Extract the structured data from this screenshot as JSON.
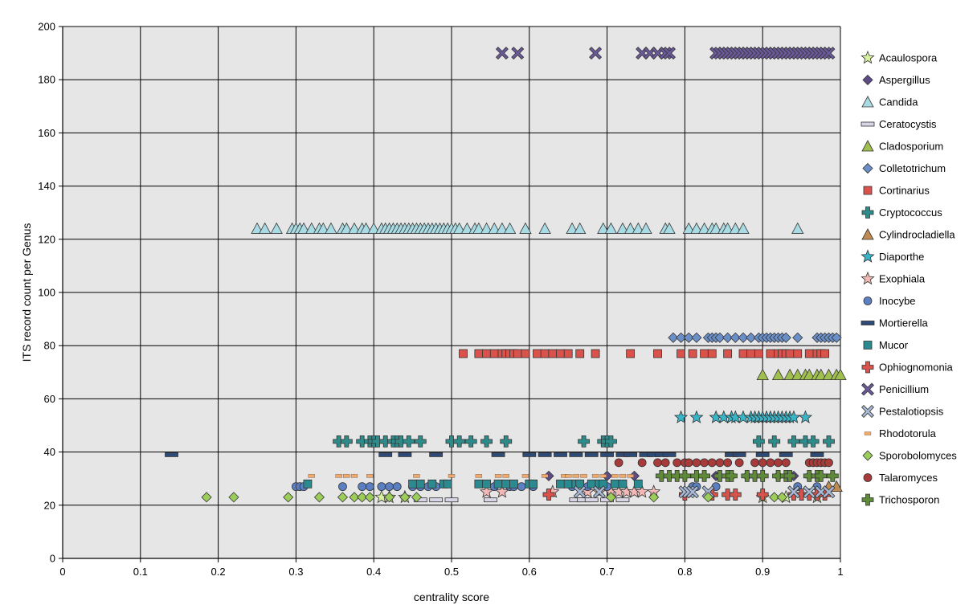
{
  "chart_data": {
    "type": "scatter",
    "title": "",
    "xlabel": "centrality score",
    "ylabel": "ITS record count per Genus",
    "xlim": [
      0,
      1
    ],
    "ylim": [
      0,
      200
    ],
    "x_ticks": [
      "0",
      "0.1",
      "0.2",
      "0.3",
      "0.4",
      "0.5",
      "0.6",
      "0.7",
      "0.8",
      "0.9",
      "1"
    ],
    "y_ticks": [
      "0",
      "20",
      "40",
      "60",
      "80",
      "100",
      "120",
      "140",
      "160",
      "180",
      "200"
    ],
    "grid": true,
    "legend_position": "right",
    "series": [
      {
        "name": "Acaulospora",
        "marker": "star",
        "color": "#d9f0a3",
        "y": 23,
        "x": [
          0.41,
          0.42,
          0.44,
          0.9,
          0.93,
          0.97
        ]
      },
      {
        "name": "Aspergillus",
        "marker": "diamond",
        "color": "#5e4a86",
        "y": 31,
        "x": [
          0.625,
          0.7,
          0.735,
          0.84,
          0.86,
          0.88,
          0.92,
          0.94,
          0.96
        ]
      },
      {
        "name": "Candida",
        "marker": "triangle",
        "color": "#a8dbe3",
        "y": 124,
        "x": [
          0.25,
          0.26,
          0.275,
          0.295,
          0.3,
          0.305,
          0.31,
          0.32,
          0.33,
          0.335,
          0.345,
          0.36,
          0.365,
          0.375,
          0.385,
          0.39,
          0.4,
          0.41,
          0.415,
          0.42,
          0.425,
          0.43,
          0.435,
          0.44,
          0.445,
          0.45,
          0.455,
          0.46,
          0.465,
          0.47,
          0.475,
          0.48,
          0.485,
          0.49,
          0.495,
          0.5,
          0.505,
          0.51,
          0.52,
          0.53,
          0.535,
          0.545,
          0.555,
          0.565,
          0.575,
          0.595,
          0.62,
          0.655,
          0.665,
          0.695,
          0.705,
          0.72,
          0.73,
          0.74,
          0.75,
          0.775,
          0.78,
          0.805,
          0.815,
          0.825,
          0.835,
          0.84,
          0.85,
          0.855,
          0.865,
          0.875,
          0.945
        ]
      },
      {
        "name": "Ceratocystis",
        "marker": "hbar",
        "color": "#d9d5e6",
        "y": 22,
        "x": [
          0.46,
          0.48,
          0.5,
          0.55,
          0.66,
          0.67,
          0.68,
          0.7,
          0.72
        ]
      },
      {
        "name": "Cladosporium",
        "marker": "triangle",
        "color": "#9fbf4f",
        "y": 69,
        "x": [
          0.9,
          0.92,
          0.935,
          0.945,
          0.955,
          0.96,
          0.97,
          0.975,
          0.985,
          0.995,
          1.0
        ]
      },
      {
        "name": "Colletotrichum",
        "marker": "diamond",
        "color": "#6a8fc8",
        "y": 83,
        "x": [
          0.785,
          0.795,
          0.805,
          0.815,
          0.83,
          0.835,
          0.84,
          0.845,
          0.855,
          0.865,
          0.875,
          0.885,
          0.895,
          0.9,
          0.905,
          0.91,
          0.915,
          0.92,
          0.925,
          0.93,
          0.945,
          0.97,
          0.975,
          0.98,
          0.985,
          0.99,
          0.995
        ]
      },
      {
        "name": "Cortinarius",
        "marker": "square",
        "color": "#d9524c",
        "y": 77,
        "x": [
          0.515,
          0.535,
          0.545,
          0.555,
          0.565,
          0.57,
          0.575,
          0.58,
          0.585,
          0.595,
          0.61,
          0.62,
          0.63,
          0.64,
          0.65,
          0.665,
          0.685,
          0.73,
          0.765,
          0.795,
          0.81,
          0.825,
          0.835,
          0.855,
          0.875,
          0.885,
          0.895,
          0.91,
          0.92,
          0.925,
          0.93,
          0.935,
          0.945,
          0.96,
          0.97,
          0.975,
          0.98
        ]
      },
      {
        "name": "Cryptococcus",
        "marker": "cross",
        "color": "#2f8a8a",
        "y": 44,
        "x": [
          0.355,
          0.365,
          0.385,
          0.395,
          0.4,
          0.405,
          0.415,
          0.425,
          0.43,
          0.435,
          0.445,
          0.46,
          0.5,
          0.51,
          0.525,
          0.545,
          0.57,
          0.67,
          0.695,
          0.7,
          0.705,
          0.895,
          0.915,
          0.94,
          0.955,
          0.965,
          0.985
        ]
      },
      {
        "name": "Cylindrocladiella",
        "marker": "triangle",
        "color": "#c08a50",
        "y": 27,
        "x": [
          0.985,
          0.995
        ]
      },
      {
        "name": "Diaporthe",
        "marker": "star",
        "color": "#3ab5c8",
        "y": 53,
        "x": [
          0.795,
          0.815,
          0.84,
          0.85,
          0.86,
          0.865,
          0.875,
          0.885,
          0.89,
          0.895,
          0.9,
          0.905,
          0.91,
          0.915,
          0.92,
          0.925,
          0.93,
          0.935,
          0.94,
          0.955
        ]
      },
      {
        "name": "Exophiala",
        "marker": "star",
        "color": "#f2b8b5",
        "y": 25,
        "x": [
          0.545,
          0.565,
          0.63,
          0.675,
          0.69,
          0.705,
          0.715,
          0.725,
          0.735,
          0.745,
          0.76
        ]
      },
      {
        "name": "Inocybe",
        "marker": "circle",
        "color": "#5b7fc0",
        "y": 27,
        "x": [
          0.3,
          0.305,
          0.31,
          0.36,
          0.385,
          0.395,
          0.41,
          0.42,
          0.43,
          0.45,
          0.46,
          0.47,
          0.48,
          0.555,
          0.575,
          0.58,
          0.59,
          0.605,
          0.655,
          0.675,
          0.7,
          0.81,
          0.815,
          0.84,
          0.945,
          0.97
        ]
      },
      {
        "name": "Mortierella",
        "marker": "hbar",
        "color": "#2e4a77",
        "y": 39,
        "x": [
          0.14,
          0.415,
          0.44,
          0.48,
          0.56,
          0.6,
          0.62,
          0.64,
          0.66,
          0.68,
          0.7,
          0.72,
          0.73,
          0.75,
          0.76,
          0.77,
          0.78,
          0.86,
          0.87,
          0.9,
          0.93,
          0.97
        ]
      },
      {
        "name": "Mucor",
        "marker": "square",
        "color": "#2a8a8f",
        "y": 28,
        "x": [
          0.315,
          0.45,
          0.46,
          0.475,
          0.49,
          0.495,
          0.535,
          0.545,
          0.56,
          0.57,
          0.58,
          0.6,
          0.605,
          0.64,
          0.65,
          0.66,
          0.665,
          0.68,
          0.69,
          0.695,
          0.71,
          0.72,
          0.74
        ]
      },
      {
        "name": "Ophiognomonia",
        "marker": "cross",
        "color": "#d9524c",
        "y": 24,
        "x": [
          0.625,
          0.8,
          0.835,
          0.855,
          0.865,
          0.9,
          0.94,
          0.95,
          0.96,
          0.97,
          0.98
        ]
      },
      {
        "name": "Penicillium",
        "marker": "x",
        "color": "#6b5a9a",
        "y": 190,
        "x": [
          0.565,
          0.585,
          0.685,
          0.745,
          0.755,
          0.765,
          0.775,
          0.78,
          0.84,
          0.845,
          0.85,
          0.855,
          0.86,
          0.865,
          0.87,
          0.875,
          0.88,
          0.885,
          0.89,
          0.895,
          0.9,
          0.905,
          0.91,
          0.915,
          0.92,
          0.925,
          0.93,
          0.935,
          0.94,
          0.945,
          0.95,
          0.955,
          0.96,
          0.965,
          0.97,
          0.975,
          0.98,
          0.985
        ]
      },
      {
        "name": "Pestalotiopsis",
        "marker": "x",
        "color": "#a7b9d6",
        "y": 25,
        "x": [
          0.665,
          0.69,
          0.8,
          0.805,
          0.81,
          0.83,
          0.94,
          0.96,
          0.975,
          0.985
        ]
      },
      {
        "name": "Rhodotorula",
        "marker": "smallbar",
        "color": "#f2a868",
        "y": 31,
        "x": [
          0.32,
          0.355,
          0.365,
          0.375,
          0.395,
          0.455,
          0.5,
          0.535,
          0.56,
          0.57,
          0.595,
          0.62,
          0.645,
          0.65,
          0.66,
          0.67,
          0.685,
          0.695,
          0.71,
          0.72,
          0.73
        ]
      },
      {
        "name": "Sporobolomyces",
        "marker": "diamond",
        "color": "#9ccc5a",
        "y": 23,
        "x": [
          0.185,
          0.22,
          0.29,
          0.33,
          0.36,
          0.375,
          0.385,
          0.395,
          0.42,
          0.44,
          0.455,
          0.705,
          0.76,
          0.83,
          0.915,
          0.925
        ]
      },
      {
        "name": "Talaromyces",
        "marker": "circle",
        "color": "#a83a3a",
        "y": 36,
        "x": [
          0.715,
          0.745,
          0.765,
          0.775,
          0.79,
          0.8,
          0.805,
          0.815,
          0.825,
          0.835,
          0.845,
          0.855,
          0.87,
          0.89,
          0.9,
          0.91,
          0.92,
          0.93,
          0.96,
          0.965,
          0.97,
          0.975,
          0.98,
          0.985
        ]
      },
      {
        "name": "Trichosporon",
        "marker": "cross",
        "color": "#5e8a3a",
        "y": 31,
        "x": [
          0.77,
          0.78,
          0.79,
          0.8,
          0.815,
          0.825,
          0.845,
          0.855,
          0.86,
          0.88,
          0.89,
          0.9,
          0.92,
          0.93,
          0.935,
          0.96,
          0.97,
          0.975,
          0.99
        ]
      }
    ]
  }
}
